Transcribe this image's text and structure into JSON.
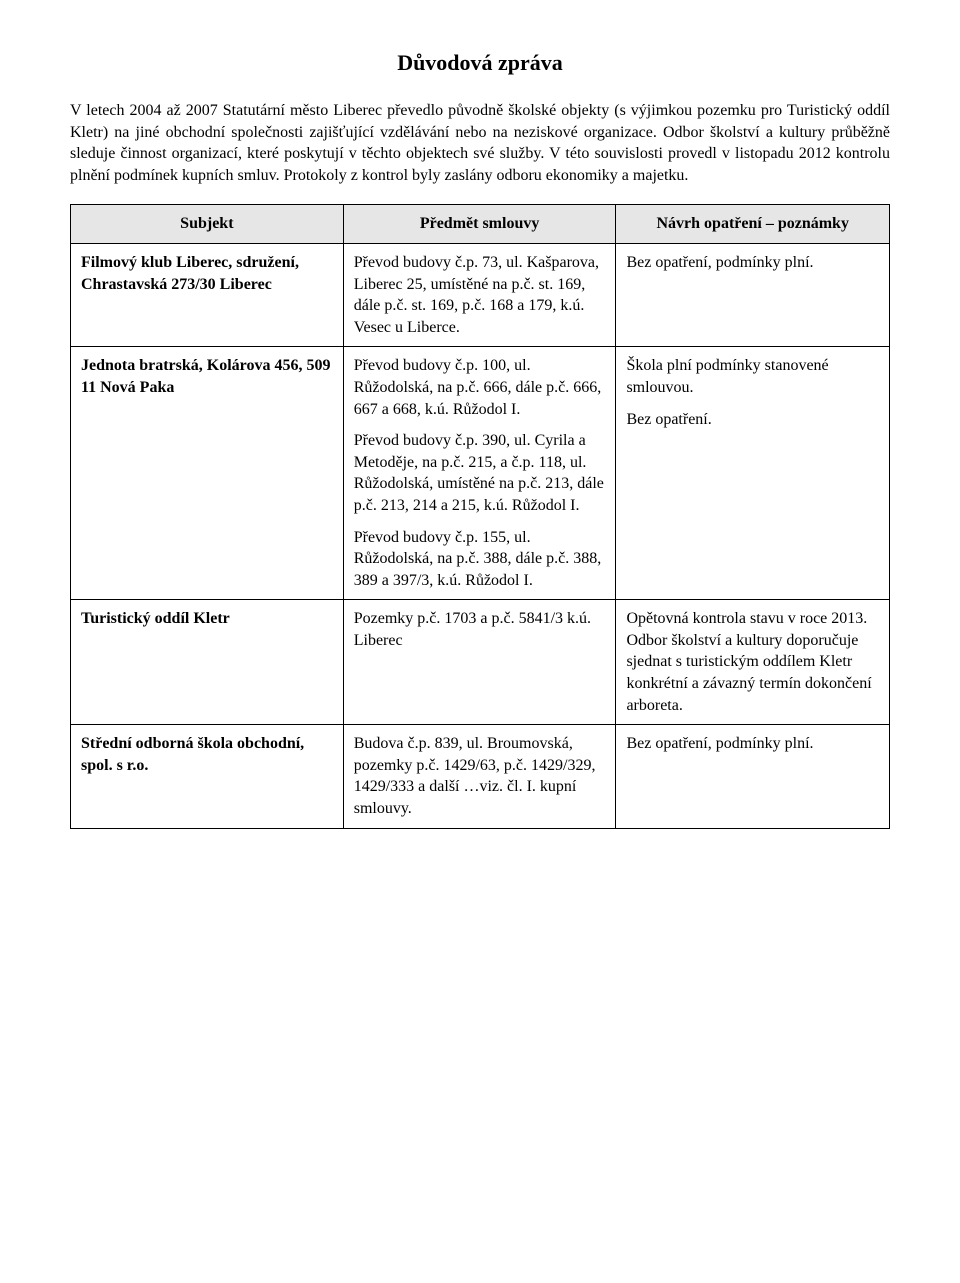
{
  "title": "Důvodová zpráva",
  "intro": "V letech 2004 až 2007 Statutární město Liberec převedlo původně školské objekty (s výjimkou pozemku pro Turistický oddíl Kletr) na jiné obchodní společnosti zajišťující vzdělávání nebo na neziskové organizace. Odbor školství a  kultury průběžně sleduje činnost organizací, které  poskytují  v těchto  objektech  své  služby.  V této  souvislosti  provedl v listopadu 2012 kontrolu plnění podmínek kupních smluv. Protokoly z kontrol  byly zaslány odboru  ekonomiky a majetku.",
  "table": {
    "headers": {
      "subject": "Subjekt",
      "predmet": "Předmět smlouvy",
      "navrh": "Návrh opatření – poznámky"
    },
    "rows": [
      {
        "subject": "Filmový klub Liberec, sdružení, Chrastavská 273/30   Liberec",
        "predmet": [
          "Převod budovy č.p. 73, ul. Kašparova, Liberec 25, umístěné na p.č. st. 169, dále p.č. st. 169, p.č. 168 a 179, k.ú. Vesec u Liberce."
        ],
        "navrh": [
          "Bez opatření,  podmínky plní."
        ]
      },
      {
        "subject": "Jednota bratrská, Kolárova 456,  509 11 Nová Paka",
        "predmet": [
          "Převod budovy č.p. 100, ul. Růžodolská, na p.č. 666, dále p.č. 666, 667 a 668, k.ú. Růžodol I.",
          "Převod budovy č.p. 390, ul. Cyrila a Metoděje, na p.č. 215, a č.p. 118, ul. Růžodolská, umístěné na p.č. 213, dále p.č. 213, 214 a 215, k.ú. Růžodol I.",
          "Převod budovy č.p. 155, ul. Růžodolská, na p.č. 388, dále p.č. 388, 389 a 397/3, k.ú. Růžodol I."
        ],
        "navrh": [
          "Škola plní podmínky stanovené smlouvou.",
          "Bez opatření."
        ]
      },
      {
        "subject": "Turistický oddíl Kletr",
        "predmet": [
          "Pozemky p.č. 1703 a p.č. 5841/3 k.ú. Liberec"
        ],
        "navrh": [
          "Opětovná kontrola stavu v roce 2013. Odbor školství a kultury doporučuje sjednat s turistickým oddílem Kletr konkrétní a závazný termín dokončení arboreta."
        ]
      },
      {
        "subject": "Střední odborná škola obchodní, spol. s r.o.",
        "predmet": [
          "Budova č.p. 839, ul. Broumovská, pozemky p.č. 1429/63, p.č. 1429/329, 1429/333 a další …viz. čl. I. kupní smlouvy."
        ],
        "navrh": [
          "Bez opatření, podmínky plní."
        ]
      }
    ]
  }
}
